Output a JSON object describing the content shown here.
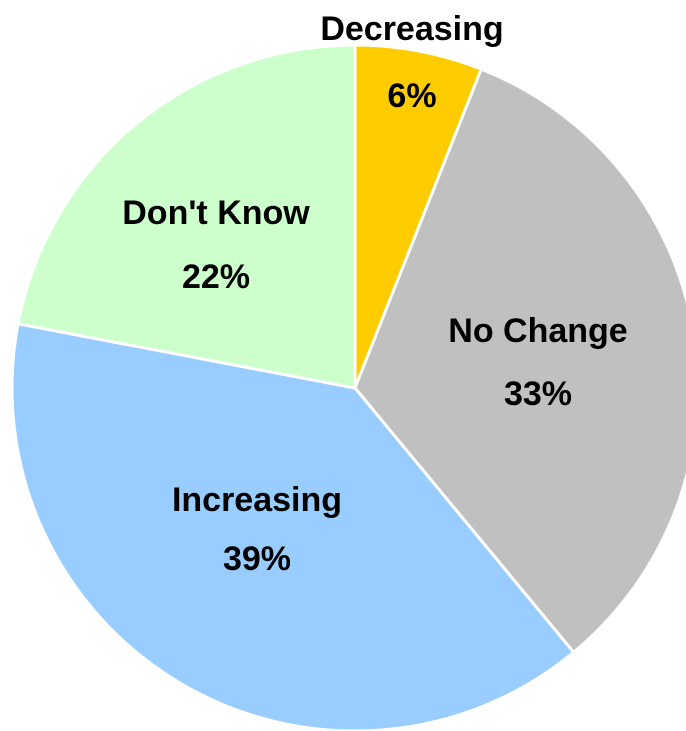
{
  "chart_data": {
    "type": "pie",
    "start_angle_deg": 0,
    "direction": "clockwise",
    "slices": [
      {
        "label": "Decreasing",
        "value": 6,
        "value_label": "6%",
        "color": "#FFCC00"
      },
      {
        "label": "No Change",
        "value": 33,
        "value_label": "33%",
        "color": "#C0C0C0"
      },
      {
        "label": "Increasing",
        "value": 39,
        "value_label": "39%",
        "color": "#99CCFF"
      },
      {
        "label": "Don't Know",
        "value": 22,
        "value_label": "22%",
        "color": "#CCFFCC"
      }
    ]
  }
}
